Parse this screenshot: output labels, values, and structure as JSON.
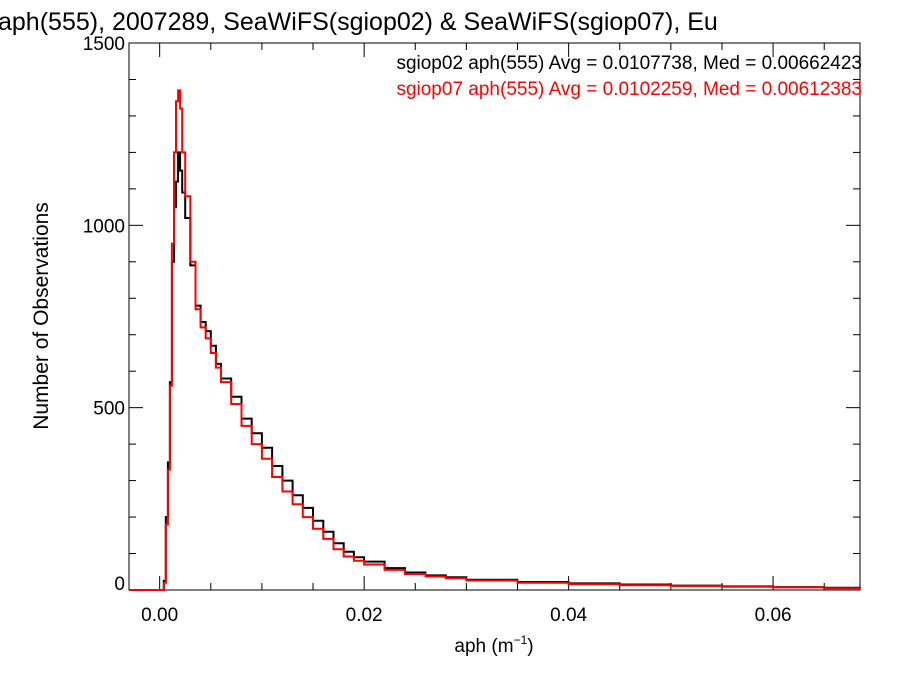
{
  "chart_data": {
    "type": "histogram",
    "title": "aph(555), 2007289, SeaWiFS(sgiop02) & SeaWiFS(sgiop07), Eu",
    "xlabel": "aph (m",
    "xlabel_sup": "−1",
    "xlabel_end": ")",
    "ylabel": "Number of Observations",
    "xlim": [
      -0.003,
      0.0685
    ],
    "ylim": [
      0,
      1500
    ],
    "x_ticks": [
      {
        "value": 0.0,
        "label": "0.00"
      },
      {
        "value": 0.02,
        "label": "0.02"
      },
      {
        "value": 0.04,
        "label": "0.04"
      },
      {
        "value": 0.06,
        "label": "0.06"
      }
    ],
    "x_minor_step": 0.005,
    "y_ticks": [
      {
        "value": 0,
        "label": "0"
      },
      {
        "value": 500,
        "label": "500"
      },
      {
        "value": 1000,
        "label": "1000"
      },
      {
        "value": 1500,
        "label": "1500"
      }
    ],
    "y_minor_step": 100,
    "grid": false,
    "legend_position": "top-right",
    "series": [
      {
        "name": "sgiop02 aph(555) Avg = 0.0107738, Med = 0.00662423",
        "color": "#000000",
        "points": [
          [
            -0.003,
            0
          ],
          [
            0.0,
            0
          ],
          [
            0.0004,
            25
          ],
          [
            0.0006,
            200
          ],
          [
            0.0008,
            350
          ],
          [
            0.001,
            570
          ],
          [
            0.0012,
            900
          ],
          [
            0.0014,
            1050
          ],
          [
            0.0016,
            1120
          ],
          [
            0.0018,
            1200
          ],
          [
            0.002,
            1150
          ],
          [
            0.0022,
            1090
          ],
          [
            0.0025,
            1020
          ],
          [
            0.003,
            890
          ],
          [
            0.0035,
            780
          ],
          [
            0.004,
            735
          ],
          [
            0.0045,
            710
          ],
          [
            0.005,
            670
          ],
          [
            0.0055,
            620
          ],
          [
            0.006,
            580
          ],
          [
            0.007,
            530
          ],
          [
            0.008,
            470
          ],
          [
            0.009,
            430
          ],
          [
            0.01,
            390
          ],
          [
            0.011,
            340
          ],
          [
            0.012,
            300
          ],
          [
            0.013,
            260
          ],
          [
            0.014,
            225
          ],
          [
            0.015,
            190
          ],
          [
            0.016,
            160
          ],
          [
            0.017,
            128
          ],
          [
            0.018,
            105
          ],
          [
            0.019,
            90
          ],
          [
            0.02,
            78
          ],
          [
            0.022,
            60
          ],
          [
            0.024,
            48
          ],
          [
            0.026,
            40
          ],
          [
            0.028,
            35
          ],
          [
            0.03,
            28
          ],
          [
            0.035,
            22
          ],
          [
            0.04,
            18
          ],
          [
            0.045,
            15
          ],
          [
            0.05,
            12
          ],
          [
            0.055,
            10
          ],
          [
            0.06,
            8
          ],
          [
            0.065,
            6
          ],
          [
            0.0685,
            5
          ]
        ]
      },
      {
        "name": "sgiop07 aph(555) Avg = 0.0102259, Med = 0.00612383",
        "color": "#ff0000",
        "points": [
          [
            -0.003,
            0
          ],
          [
            0.0,
            0
          ],
          [
            0.0004,
            20
          ],
          [
            0.0006,
            180
          ],
          [
            0.0008,
            330
          ],
          [
            0.001,
            560
          ],
          [
            0.0012,
            950
          ],
          [
            0.0014,
            1200
          ],
          [
            0.0016,
            1340
          ],
          [
            0.0018,
            1370
          ],
          [
            0.002,
            1320
          ],
          [
            0.0022,
            1200
          ],
          [
            0.0025,
            1080
          ],
          [
            0.003,
            900
          ],
          [
            0.0035,
            770
          ],
          [
            0.004,
            720
          ],
          [
            0.0045,
            690
          ],
          [
            0.005,
            650
          ],
          [
            0.0055,
            610
          ],
          [
            0.006,
            570
          ],
          [
            0.007,
            510
          ],
          [
            0.008,
            450
          ],
          [
            0.009,
            400
          ],
          [
            0.01,
            360
          ],
          [
            0.011,
            310
          ],
          [
            0.012,
            270
          ],
          [
            0.013,
            235
          ],
          [
            0.014,
            200
          ],
          [
            0.015,
            168
          ],
          [
            0.016,
            140
          ],
          [
            0.017,
            112
          ],
          [
            0.018,
            92
          ],
          [
            0.019,
            80
          ],
          [
            0.02,
            70
          ],
          [
            0.022,
            55
          ],
          [
            0.024,
            44
          ],
          [
            0.026,
            37
          ],
          [
            0.028,
            32
          ],
          [
            0.03,
            26
          ],
          [
            0.035,
            20
          ],
          [
            0.04,
            16
          ],
          [
            0.045,
            13
          ],
          [
            0.05,
            11
          ],
          [
            0.055,
            9
          ],
          [
            0.06,
            7
          ],
          [
            0.065,
            5
          ],
          [
            0.0685,
            4
          ]
        ]
      }
    ]
  }
}
